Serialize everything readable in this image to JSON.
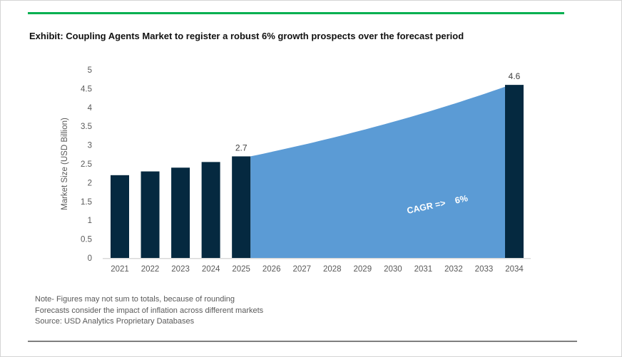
{
  "page": {
    "title": "Exhibit: Coupling Agents Market to register a robust 6% growth prospects over the forecast period",
    "notes": [
      "Note- Figures may not sum to totals, because of rounding",
      "Forecasts consider the impact of inflation across different markets",
      "Source: USD Analytics Proprietary Databases"
    ],
    "accent_color": "#00b050"
  },
  "chart_data": {
    "type": "bar",
    "title": "Exhibit: Coupling Agents Market to register a robust 6% growth prospects over the forecast period",
    "xlabel": "",
    "ylabel": "Market Size (USD Billion)",
    "ylim": [
      0,
      5
    ],
    "ytick_step": 0.5,
    "grid": false,
    "legend": "none",
    "categories": [
      "2021",
      "2022",
      "2023",
      "2024",
      "2025",
      "2026",
      "2027",
      "2028",
      "2029",
      "2030",
      "2031",
      "2032",
      "2033",
      "2034"
    ],
    "series": [
      {
        "name": "Market size (bars)",
        "type": "bar",
        "values": [
          2.2,
          2.3,
          2.4,
          2.55,
          2.7,
          null,
          null,
          null,
          null,
          null,
          null,
          null,
          null,
          4.6
        ],
        "color": "#052940"
      },
      {
        "name": "Forecast area (6% CAGR)",
        "type": "area",
        "from_category": "2025",
        "to_category": "2034",
        "start_value": 2.7,
        "end_value": 4.55,
        "cagr_pct": 6,
        "color": "#5b9bd5"
      }
    ],
    "data_labels": [
      {
        "category": "2025",
        "text": "2.7"
      },
      {
        "category": "2034",
        "text": "4.6"
      }
    ],
    "annotation": {
      "text": "CAGR =>    6%",
      "color": "#ffffff",
      "rotation_deg": -12
    },
    "axis_text_color": "#595959",
    "label_text_color": "#404040"
  }
}
